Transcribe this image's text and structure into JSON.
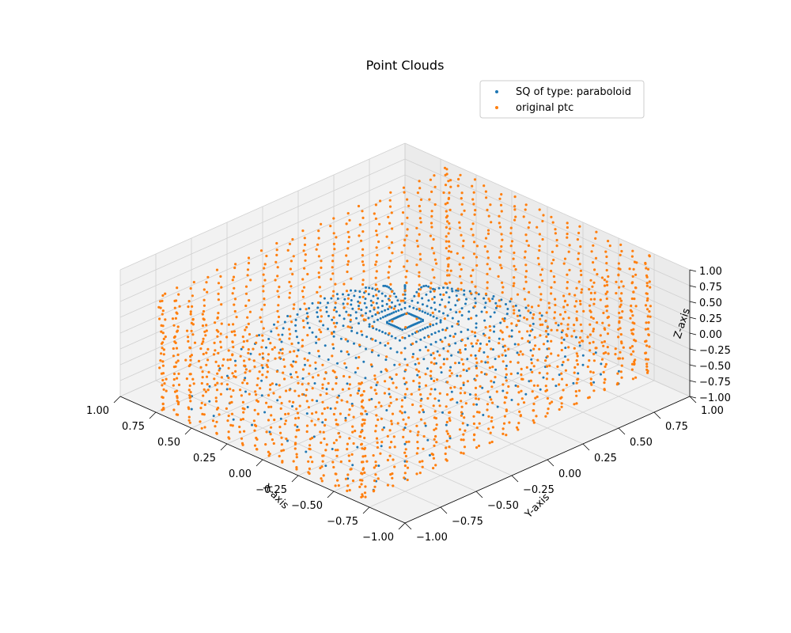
{
  "chart_data": {
    "type": "scatter",
    "projection": "3d",
    "title": "Point Clouds",
    "xlabel": "X-axis",
    "ylabel": "Y-axis",
    "zlabel": "Z-axis",
    "xlim": [
      -1,
      1
    ],
    "ylim": [
      -1,
      1
    ],
    "zlim": [
      -1,
      1
    ],
    "xticks": [
      "1.00",
      "0.75",
      "0.50",
      "0.25",
      "0.00",
      "−0.25",
      "−0.50",
      "−0.75",
      "−1.00"
    ],
    "yticks": [
      "−1.00",
      "−0.75",
      "−0.50",
      "−0.25",
      "0.00",
      "0.25",
      "0.50",
      "0.75",
      "1.00"
    ],
    "zticks": [
      "1.00",
      "0.75",
      "0.50",
      "0.25",
      "0.00",
      "−0.25",
      "−0.50",
      "−0.75",
      "−1.00"
    ],
    "grid": true,
    "legend_position": "top-right",
    "series": [
      {
        "name": "SQ of type: paraboloid",
        "color": "#1f77b4",
        "shape": "paraboloid",
        "params": {
          "radial_lines": 48,
          "rings": 12,
          "x_range": [
            -0.7,
            0.7
          ],
          "y_range": [
            -0.9,
            0.9
          ],
          "z_range": [
            -0.9,
            0.1
          ]
        }
      },
      {
        "name": "original ptc",
        "color": "#ff7f0e",
        "shape": "box-shell",
        "params": {
          "x_range": [
            -0.7,
            0.7
          ],
          "y_range": [
            -1.0,
            1.0
          ],
          "z_range": [
            -0.9,
            0.9
          ],
          "walls": [
            "x-min",
            "x-max",
            "y-min",
            "y-max",
            "z-min"
          ]
        }
      }
    ]
  }
}
